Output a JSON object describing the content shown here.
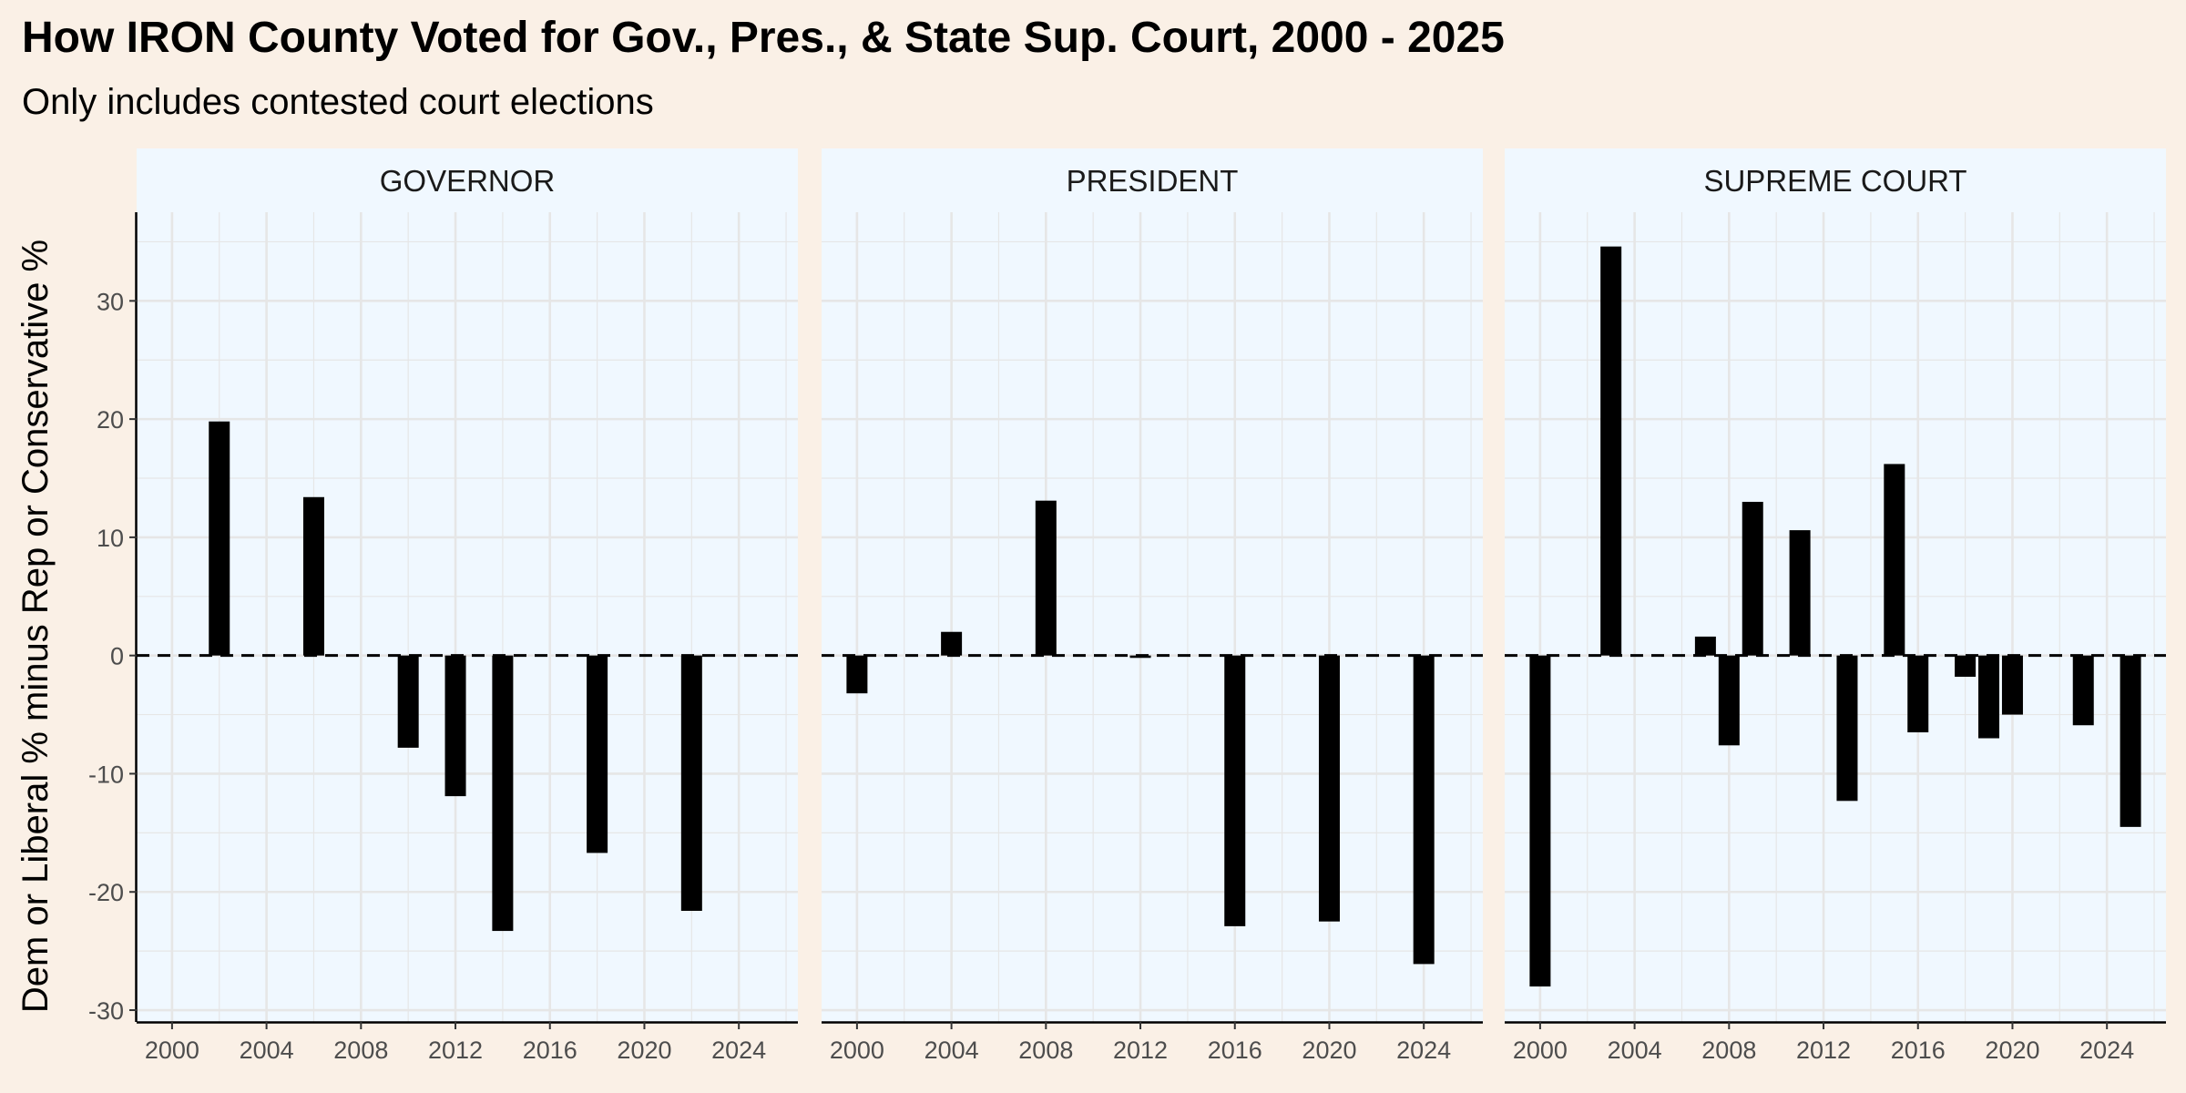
{
  "title": "How IRON County Voted for Gov., Pres., & State Sup. Court, 2000 - 2025",
  "subtitle": "Only includes contested court elections",
  "colors": {
    "background": "#FAF0E6",
    "panel": "#F0F8FF",
    "strip": "#F0F8FF",
    "bar": "#000000",
    "grid": "#E6E6E6",
    "reference_line": "#000000"
  },
  "chart_data": {
    "type": "bar",
    "facet_by": "office",
    "xlim": [
      1998.5,
      2026.5
    ],
    "ylim": [
      -31,
      37.5
    ],
    "x_ticks": [
      2000,
      2004,
      2008,
      2012,
      2016,
      2020,
      2024
    ],
    "y_ticks": [
      -30,
      -20,
      -10,
      0,
      10,
      20,
      30
    ],
    "ylabel": "Dem or Liberal % minus Rep or Conservative %",
    "xlabel": "",
    "reference_line": {
      "y": 0,
      "style": "dashed"
    },
    "grid": true,
    "panels": [
      {
        "name": "GOVERNOR",
        "x": [
          2002,
          2006,
          2010,
          2012,
          2014,
          2018,
          2022
        ],
        "values": [
          19.8,
          13.4,
          -7.8,
          -11.9,
          -23.3,
          -16.7,
          -21.6
        ]
      },
      {
        "name": "PRESIDENT",
        "x": [
          2000,
          2004,
          2008,
          2012,
          2016,
          2020,
          2024
        ],
        "values": [
          -3.2,
          2.0,
          13.1,
          -0.2,
          -22.9,
          -22.5,
          -26.1
        ]
      },
      {
        "name": "SUPREME COURT",
        "x": [
          2000,
          2003,
          2007,
          2008,
          2009,
          2011,
          2013,
          2015,
          2016,
          2018,
          2019,
          2020,
          2023,
          2025
        ],
        "values": [
          -28.0,
          34.6,
          1.6,
          -7.6,
          13.0,
          10.6,
          -12.3,
          16.2,
          -6.5,
          -1.8,
          -7.0,
          -5.0,
          -5.9,
          -14.5
        ]
      }
    ]
  }
}
